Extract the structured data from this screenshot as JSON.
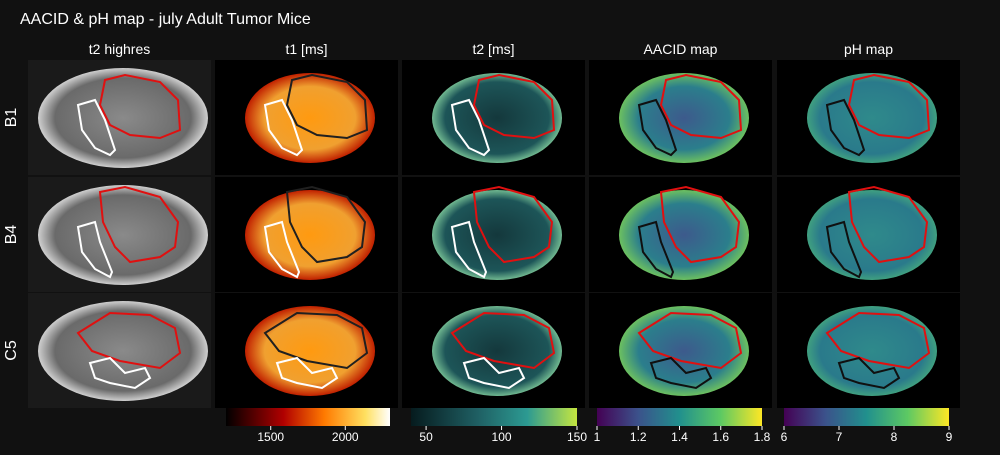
{
  "title": "AACID & pH map - july Adult Tumor Mice",
  "columns": [
    "t2 highres",
    "t1 [ms]",
    "t2 [ms]",
    "AACID map",
    "pH map"
  ],
  "rows": [
    "B1",
    "B4",
    "C5"
  ],
  "colorbars": [
    {
      "range": [
        1200,
        2300
      ],
      "ticks": [
        1500,
        2000
      ]
    },
    {
      "range": [
        40,
        150
      ],
      "ticks": [
        50,
        100,
        150
      ]
    },
    {
      "range": [
        1,
        1.8
      ],
      "ticks": [
        1,
        1.2,
        1.4,
        1.6,
        1.8
      ]
    },
    {
      "range": [
        6,
        9
      ],
      "ticks": [
        6,
        7,
        8,
        9
      ]
    }
  ]
}
